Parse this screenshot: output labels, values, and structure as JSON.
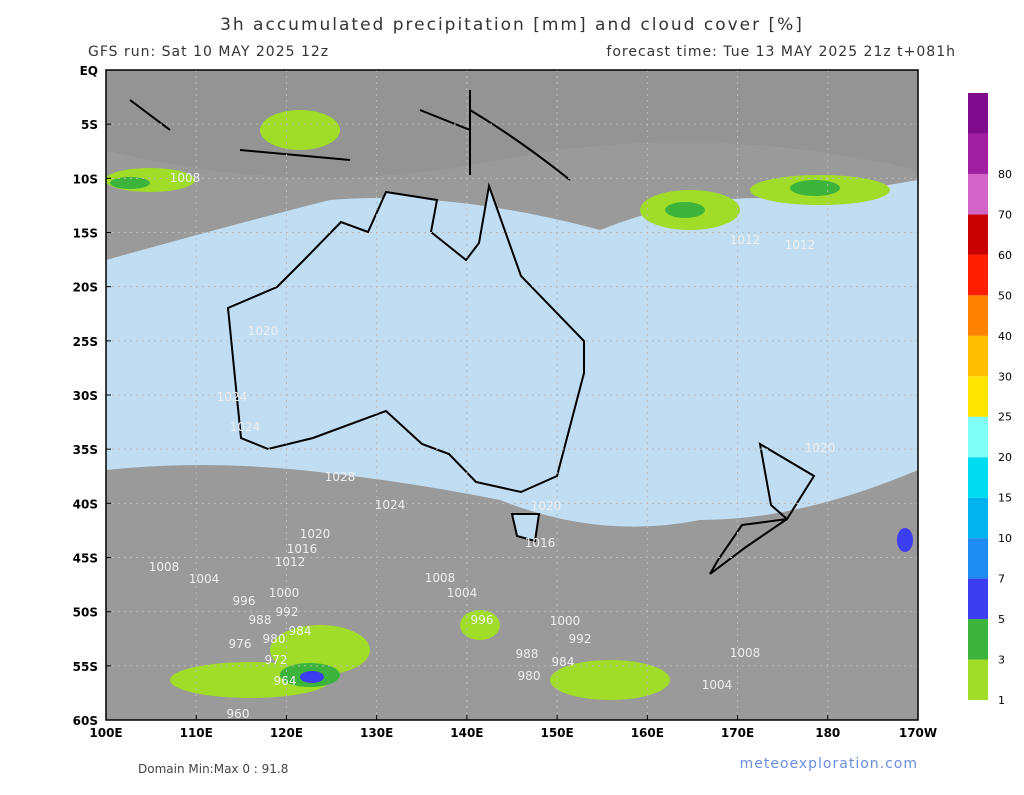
{
  "header": {
    "title": "3h accumulated precipitation [mm] and cloud cover [%]",
    "run": "GFS run: Sat 10 MAY 2025 12z",
    "forecast": "forecast time: Tue 13 MAY 2025 21z  t+081h"
  },
  "map": {
    "lat_labels": [
      "EQ",
      "5S",
      "10S",
      "15S",
      "20S",
      "25S",
      "30S",
      "35S",
      "40S",
      "45S",
      "50S",
      "55S",
      "60S"
    ],
    "lon_labels": [
      "100E",
      "110E",
      "120E",
      "130E",
      "140E",
      "150E",
      "160E",
      "170E",
      "180",
      "170W"
    ],
    "isobars": [
      "1008",
      "1012",
      "1020",
      "1024",
      "1024",
      "1028",
      "1024",
      "1020",
      "1016",
      "1012",
      "1008",
      "1004",
      "1000",
      "996",
      "992",
      "988",
      "984",
      "980",
      "976",
      "972",
      "964",
      "960",
      "1008",
      "1004",
      "1000",
      "996",
      "992",
      "988",
      "984",
      "980",
      "1020",
      "1016",
      "1012",
      "1008",
      "1004",
      "1020"
    ]
  },
  "legend": {
    "levels": [
      1,
      3,
      5,
      7,
      10,
      15,
      20,
      25,
      30,
      40,
      50,
      60,
      70,
      80
    ],
    "colors": [
      "#a0dc28",
      "#3cb43c",
      "#3c3cf0",
      "#1e8cf0",
      "#00b4f0",
      "#00dcf0",
      "#80fff8",
      "#ffe600",
      "#ffbe00",
      "#ff8200",
      "#ff1e00",
      "#c80000",
      "#d264c8",
      "#a01ea0",
      "#7e0a8c"
    ]
  },
  "footer": {
    "domain": "Domain Min:Max 0 : 91.8",
    "site": "meteoexploration.com"
  }
}
